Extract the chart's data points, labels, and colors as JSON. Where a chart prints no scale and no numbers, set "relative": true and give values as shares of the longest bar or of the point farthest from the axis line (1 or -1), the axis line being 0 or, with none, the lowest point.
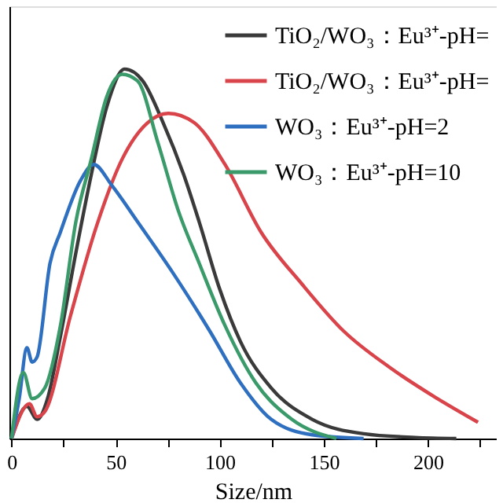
{
  "chart_data": {
    "type": "line",
    "xlabel": "Size/nm",
    "relative": true,
    "xlim": [
      -1,
      233
    ],
    "xticks": [
      0,
      {
        "value": 25,
        "label": null
      },
      50,
      {
        "value": 75,
        "label": null
      },
      100,
      {
        "value": 125,
        "label": null
      },
      150,
      {
        "value": 175,
        "label": null
      },
      200,
      {
        "value": 225,
        "label": null
      }
    ],
    "grid": false,
    "legend": "top right",
    "marker": "none",
    "line_style": "solid",
    "series": [
      {
        "name": "TiO₂/WO₃：Eu³⁺-pH=",
        "color": "#3a3a3a",
        "x": [
          0,
          7.4,
          12.3,
          17.3,
          23.5,
          30.9,
          38.3,
          45.7,
          54.3,
          63.0,
          72.8,
          82.7,
          90.1,
          100,
          109.9,
          124.7,
          144.4,
          169.1,
          193.8,
          213.6
        ],
        "values": [
          0,
          0.087,
          0.052,
          0.108,
          0.277,
          0.503,
          0.714,
          0.897,
          1.0,
          0.968,
          0.855,
          0.714,
          0.587,
          0.404,
          0.263,
          0.137,
          0.052,
          0.013,
          0.003,
          0
        ]
      },
      {
        "name": "TiO₂/WO₃：Eu³⁺-pH=",
        "color": "#d9434a",
        "x": [
          0,
          8.6,
          12.3,
          16,
          28.4,
          40.7,
          53.1,
          65.4,
          75.3,
          87.7,
          102.5,
          119.8,
          139.5,
          159.3,
          181.5,
          203.7,
          224
        ],
        "values": [
          0,
          0.094,
          0.059,
          0.073,
          0.334,
          0.573,
          0.756,
          0.855,
          0.88,
          0.855,
          0.742,
          0.559,
          0.418,
          0.292,
          0.193,
          0.111,
          0.044
        ]
      },
      {
        "name": "WO₃：Eu³⁺-pH=2",
        "color": "#2f6fc0",
        "x": [
          0,
          3.7,
          7.4,
          9.9,
          12.3,
          18.5,
          23.5,
          33.3,
          39.5,
          48.1,
          60.5,
          77.8,
          95.1,
          109.9,
          124.7,
          144.4,
          169.1
        ],
        "values": [
          0,
          0.108,
          0.246,
          0.207,
          0.221,
          0.475,
          0.559,
          0.7,
          0.742,
          0.686,
          0.587,
          0.446,
          0.292,
          0.151,
          0.052,
          0.01,
          0
        ]
      },
      {
        "name": "WO₃：Eu³⁺-pH=10",
        "color": "#3a9a6a",
        "x": [
          0,
          5.7,
          9.9,
          16,
          23.5,
          30.9,
          38.3,
          45.7,
          53.1,
          60.5,
          70.4,
          80.2,
          90.1,
          102.5,
          117.3,
          134.6,
          156
        ],
        "values": [
          0,
          0.179,
          0.108,
          0.137,
          0.306,
          0.587,
          0.756,
          0.925,
          0.986,
          0.968,
          0.799,
          0.615,
          0.475,
          0.306,
          0.151,
          0.052,
          0
        ]
      }
    ]
  }
}
